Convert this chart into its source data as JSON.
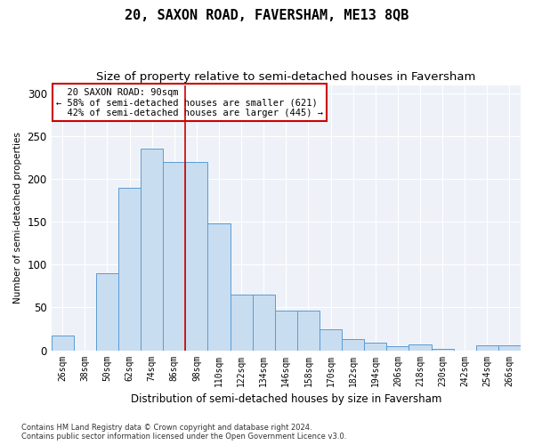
{
  "title": "20, SAXON ROAD, FAVERSHAM, ME13 8QB",
  "subtitle": "Size of property relative to semi-detached houses in Faversham",
  "xlabel": "Distribution of semi-detached houses by size in Faversham",
  "ylabel": "Number of semi-detached properties",
  "categories": [
    "26sqm",
    "38sqm",
    "50sqm",
    "62sqm",
    "74sqm",
    "86sqm",
    "98sqm",
    "110sqm",
    "122sqm",
    "134sqm",
    "146sqm",
    "158sqm",
    "170sqm",
    "182sqm",
    "194sqm",
    "206sqm",
    "218sqm",
    "230sqm",
    "242sqm",
    "254sqm",
    "266sqm"
  ],
  "values": [
    17,
    0,
    90,
    190,
    236,
    220,
    220,
    148,
    65,
    65,
    46,
    46,
    24,
    13,
    9,
    5,
    7,
    2,
    0,
    6,
    6
  ],
  "bar_color": "#c9ddf0",
  "bar_edge_color": "#5b9bd5",
  "annotation_box_color": "#ffffff",
  "annotation_box_edge": "#cc0000",
  "vertical_line_color": "#cc0000",
  "vertical_line_x": 5.5,
  "property_sqm": 90,
  "pct_smaller": 58,
  "count_smaller": 621,
  "pct_larger": 42,
  "count_larger": 445,
  "ylim": [
    0,
    310
  ],
  "yticks": [
    0,
    50,
    100,
    150,
    200,
    250,
    300
  ],
  "footer1": "Contains HM Land Registry data © Crown copyright and database right 2024.",
  "footer2": "Contains public sector information licensed under the Open Government Licence v3.0.",
  "bg_color": "#eef2f8",
  "title_fontsize": 11,
  "subtitle_fontsize": 9.5
}
